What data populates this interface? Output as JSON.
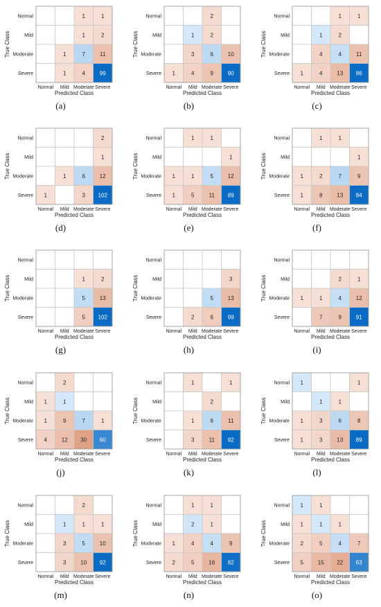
{
  "chart_data": [
    {
      "type": "heatmap",
      "label": "(a)",
      "xlabel": "Predicted Class",
      "ylabel": "True Class",
      "categories": [
        "Normal",
        "Mild",
        "Moderate",
        "Severe"
      ],
      "matrix": [
        [
          null,
          null,
          1,
          1
        ],
        [
          null,
          null,
          1,
          2
        ],
        [
          null,
          1,
          7,
          11
        ],
        [
          null,
          1,
          4,
          99
        ]
      ]
    },
    {
      "type": "heatmap",
      "label": "(b)",
      "xlabel": "Predicted Class",
      "ylabel": "True Class",
      "categories": [
        "Normal",
        "Mild",
        "Moderate",
        "Severe"
      ],
      "matrix": [
        [
          null,
          null,
          2,
          null
        ],
        [
          null,
          1,
          2,
          null
        ],
        [
          null,
          3,
          6,
          10
        ],
        [
          1,
          4,
          9,
          90
        ]
      ]
    },
    {
      "type": "heatmap",
      "label": "(c)",
      "xlabel": "Predicted Class",
      "ylabel": "True Class",
      "categories": [
        "Normal",
        "Mild",
        "Moderate",
        "Severe"
      ],
      "matrix": [
        [
          null,
          null,
          1,
          1
        ],
        [
          null,
          1,
          2,
          null
        ],
        [
          null,
          4,
          4,
          11
        ],
        [
          1,
          4,
          13,
          86
        ]
      ]
    },
    {
      "type": "heatmap",
      "label": "(d)",
      "xlabel": "Predicted Class",
      "ylabel": "True Class",
      "categories": [
        "Normal",
        "Mild",
        "Moderate",
        "Severe"
      ],
      "matrix": [
        [
          null,
          null,
          null,
          2
        ],
        [
          null,
          null,
          null,
          1
        ],
        [
          null,
          1,
          6,
          12
        ],
        [
          1,
          null,
          3,
          102
        ]
      ]
    },
    {
      "type": "heatmap",
      "label": "(e)",
      "xlabel": "Predicted Class",
      "ylabel": "True Class",
      "categories": [
        "Normal",
        "Mild",
        "Moderate",
        "Severe"
      ],
      "matrix": [
        [
          null,
          1,
          1,
          null
        ],
        [
          null,
          null,
          null,
          1
        ],
        [
          1,
          1,
          5,
          12
        ],
        [
          1,
          5,
          11,
          89
        ]
      ]
    },
    {
      "type": "heatmap",
      "label": "(f)",
      "xlabel": "Predicted Class",
      "ylabel": "True Class",
      "categories": [
        "Normal",
        "Mild",
        "Moderate",
        "Severe"
      ],
      "matrix": [
        [
          null,
          1,
          1,
          null
        ],
        [
          null,
          null,
          null,
          1
        ],
        [
          1,
          2,
          7,
          9
        ],
        [
          1,
          8,
          13,
          84
        ]
      ]
    },
    {
      "type": "heatmap",
      "label": "(g)",
      "xlabel": "Predicted Class",
      "ylabel": "True Class",
      "categories": [
        "Normal",
        "Mild",
        "Moderate",
        "Severe"
      ],
      "matrix": [
        [
          null,
          null,
          null,
          null
        ],
        [
          null,
          null,
          1,
          2
        ],
        [
          null,
          null,
          5,
          13
        ],
        [
          null,
          null,
          5,
          102
        ]
      ]
    },
    {
      "type": "heatmap",
      "label": "(h)",
      "xlabel": "Predicted Class",
      "ylabel": "True Class",
      "categories": [
        "Normal",
        "Mild",
        "Moderate",
        "Severe"
      ],
      "matrix": [
        [
          null,
          null,
          null,
          null
        ],
        [
          null,
          null,
          null,
          3
        ],
        [
          null,
          null,
          5,
          13
        ],
        [
          null,
          2,
          6,
          99
        ]
      ]
    },
    {
      "type": "heatmap",
      "label": "(i)",
      "xlabel": "Predicted Class",
      "ylabel": "True Class",
      "categories": [
        "Normal",
        "Mild",
        "Moderate",
        "Severe"
      ],
      "matrix": [
        [
          null,
          null,
          null,
          null
        ],
        [
          null,
          null,
          2,
          1
        ],
        [
          1,
          1,
          4,
          12
        ],
        [
          null,
          7,
          9,
          91
        ]
      ]
    },
    {
      "type": "heatmap",
      "label": "(j)",
      "xlabel": "Predicted Class",
      "ylabel": "True Class",
      "categories": [
        "Normal",
        "Mild",
        "Moderate",
        "Severe"
      ],
      "matrix": [
        [
          null,
          2,
          null,
          null
        ],
        [
          1,
          1,
          null,
          null
        ],
        [
          1,
          9,
          7,
          1
        ],
        [
          4,
          12,
          30,
          60
        ]
      ]
    },
    {
      "type": "heatmap",
      "label": "(k)",
      "xlabel": "Predicted Class",
      "ylabel": "True Class",
      "categories": [
        "Normal",
        "Mild",
        "Moderate",
        "Severe"
      ],
      "matrix": [
        [
          null,
          1,
          null,
          1
        ],
        [
          null,
          null,
          2,
          null
        ],
        [
          null,
          1,
          6,
          11
        ],
        [
          null,
          3,
          11,
          92
        ]
      ]
    },
    {
      "type": "heatmap",
      "label": "(l)",
      "xlabel": "Predicted Class",
      "ylabel": "True Class",
      "categories": [
        "Normal",
        "Mild",
        "Moderate",
        "Severe"
      ],
      "matrix": [
        [
          1,
          null,
          null,
          1
        ],
        [
          null,
          1,
          1,
          null
        ],
        [
          1,
          3,
          6,
          8
        ],
        [
          1,
          3,
          13,
          89
        ]
      ]
    },
    {
      "type": "heatmap",
      "label": "(m)",
      "xlabel": "Predicted Class",
      "ylabel": "True Class",
      "categories": [
        "Normal",
        "Mild",
        "Moderate",
        "Severe"
      ],
      "matrix": [
        [
          null,
          null,
          2,
          null
        ],
        [
          null,
          1,
          1,
          1
        ],
        [
          null,
          3,
          5,
          10
        ],
        [
          null,
          3,
          10,
          92
        ]
      ]
    },
    {
      "type": "heatmap",
      "label": "(n)",
      "xlabel": "Predicted Class",
      "ylabel": "True Class",
      "categories": [
        "Normal",
        "Mild",
        "Moderate",
        "Severe"
      ],
      "matrix": [
        [
          null,
          1,
          1,
          null
        ],
        [
          null,
          2,
          1,
          null
        ],
        [
          1,
          4,
          4,
          9
        ],
        [
          2,
          5,
          16,
          82
        ]
      ]
    },
    {
      "type": "heatmap",
      "label": "(o)",
      "xlabel": "Predicted Class",
      "ylabel": "True Class",
      "categories": [
        "Normal",
        "Mild",
        "Moderate",
        "Severe"
      ],
      "matrix": [
        [
          1,
          1,
          null,
          null
        ],
        [
          1,
          1,
          1,
          null
        ],
        [
          2,
          5,
          4,
          7
        ],
        [
          5,
          15,
          22,
          63
        ]
      ]
    }
  ],
  "colors": {
    "diagonal_max": "#0a6bc4",
    "diagonal_light": "#dfeefb",
    "offdiag_max": "#e0a286",
    "offdiag_light": "#fbeee8",
    "grid": "#c8c8c8",
    "text": "#222222",
    "text_on_dark": "#ffffff"
  }
}
